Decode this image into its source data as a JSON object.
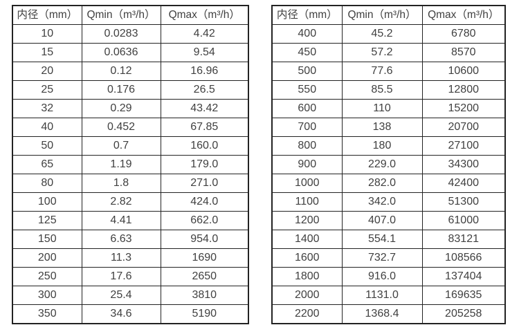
{
  "page": {
    "background": "#ffffff",
    "border_color": "#222222",
    "text_color": "#404040"
  },
  "tables": [
    {
      "name": "flow-table-small-diameters",
      "headers": [
        "内径（mm）",
        "Qmin（m³/h）",
        "Qmax（m³/h）"
      ],
      "rows": [
        [
          "10",
          "0.0283",
          "4.42"
        ],
        [
          "15",
          "0.0636",
          "9.54"
        ],
        [
          "20",
          "0.12",
          "16.96"
        ],
        [
          "25",
          "0.176",
          "26.5"
        ],
        [
          "32",
          "0.29",
          "43.42"
        ],
        [
          "40",
          "0.452",
          "67.85"
        ],
        [
          "50",
          "0.7",
          "160.0"
        ],
        [
          "65",
          "1.19",
          "179.0"
        ],
        [
          "80",
          "1.8",
          "271.0"
        ],
        [
          "100",
          "2.82",
          "424.0"
        ],
        [
          "125",
          "4.41",
          "662.0"
        ],
        [
          "150",
          "6.63",
          "954.0"
        ],
        [
          "200",
          "11.3",
          "1690"
        ],
        [
          "250",
          "17.6",
          "2650"
        ],
        [
          "300",
          "25.4",
          "3810"
        ],
        [
          "350",
          "34.6",
          "5190"
        ]
      ]
    },
    {
      "name": "flow-table-large-diameters",
      "headers": [
        "内径（mm）",
        "Qmin（m³/h）",
        "Qmax（m³/h）"
      ],
      "rows": [
        [
          "400",
          "45.2",
          "6780"
        ],
        [
          "450",
          "57.2",
          "8570"
        ],
        [
          "500",
          "77.6",
          "10600"
        ],
        [
          "550",
          "85.5",
          "12800"
        ],
        [
          "600",
          "110",
          "15200"
        ],
        [
          "700",
          "138",
          "20700"
        ],
        [
          "800",
          "180",
          "27100"
        ],
        [
          "900",
          "229.0",
          "34300"
        ],
        [
          "1000",
          "282.0",
          "42400"
        ],
        [
          "1100",
          "342.0",
          "51300"
        ],
        [
          "1200",
          "407.0",
          "61000"
        ],
        [
          "1400",
          "554.1",
          "83121"
        ],
        [
          "1600",
          "732.7",
          "108566"
        ],
        [
          "1800",
          "916.0",
          "137404"
        ],
        [
          "2000",
          "1131.0",
          "169635"
        ],
        [
          "2200",
          "1368.4",
          "205258"
        ]
      ]
    }
  ],
  "column_names": [
    "diameter",
    "qmin",
    "qmax"
  ]
}
